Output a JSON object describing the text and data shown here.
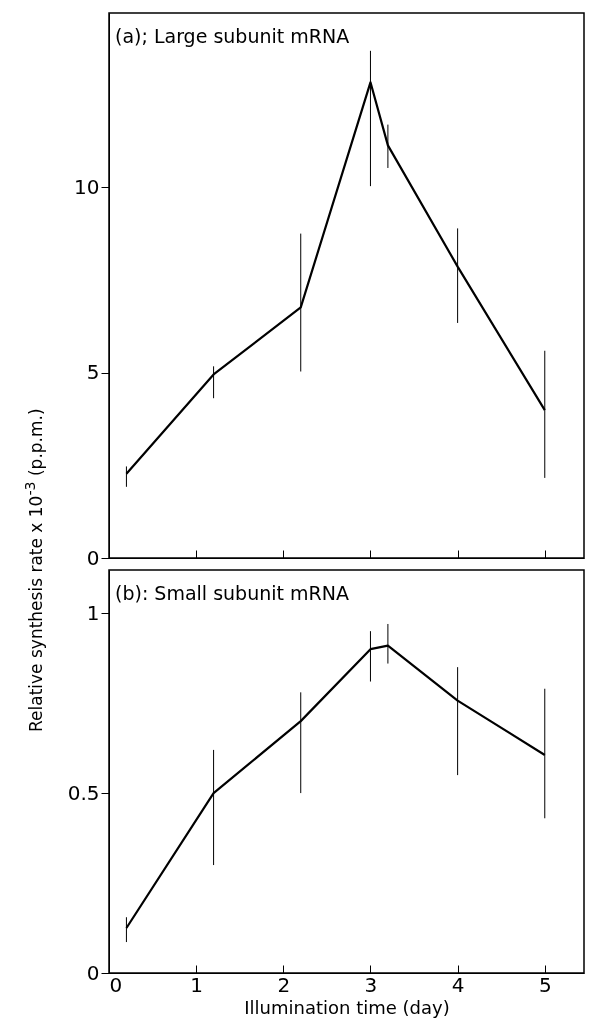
{
  "chart_data": [
    {
      "type": "line",
      "title": "(a); Large subunit mRNA",
      "ylabel": "Relative synthesis rate x 10$^{-3}$ (p.p.m.)",
      "color": "#000000",
      "x": [
        0.2,
        1.2,
        2.2,
        3.0,
        3.2,
        4.0,
        5.0
      ],
      "values": [
        2.27,
        4.95,
        6.76,
        12.83,
        11.13,
        7.86,
        3.99
      ],
      "errors": [
        [
          1.92,
          2.47
        ],
        [
          4.31,
          5.17
        ],
        [
          5.03,
          8.75
        ],
        [
          10.03,
          13.68
        ],
        [
          10.52,
          11.69
        ],
        [
          6.34,
          8.89
        ],
        [
          2.16,
          5.59
        ]
      ],
      "xlim": [
        0,
        5.45
      ],
      "xticks": [
        0,
        1,
        2,
        3,
        4,
        5
      ],
      "ylim": [
        0,
        14.7
      ],
      "yticks": [
        0,
        5,
        10
      ],
      "tick_labels": "y"
    },
    {
      "type": "line",
      "title": "(b): Small subunit mRNA",
      "xlabel": "Illumination time (day)",
      "color": "#000000",
      "x": [
        0.2,
        1.2,
        2.2,
        3.0,
        3.2,
        4.0,
        5.0
      ],
      "values": [
        0.125,
        0.5,
        0.7,
        0.9,
        0.91,
        0.757,
        0.606
      ],
      "errors": [
        [
          0.086,
          0.155
        ],
        [
          0.3,
          0.62
        ],
        [
          0.5,
          0.78
        ],
        [
          0.81,
          0.95
        ],
        [
          0.86,
          0.97
        ],
        [
          0.55,
          0.85
        ],
        [
          0.43,
          0.79
        ]
      ],
      "xlim": [
        0,
        5.45
      ],
      "xticks": [
        0,
        1,
        2,
        3,
        4,
        5
      ],
      "ylim": [
        0,
        1.12
      ],
      "yticks": [
        0,
        0.5,
        1
      ]
    }
  ]
}
